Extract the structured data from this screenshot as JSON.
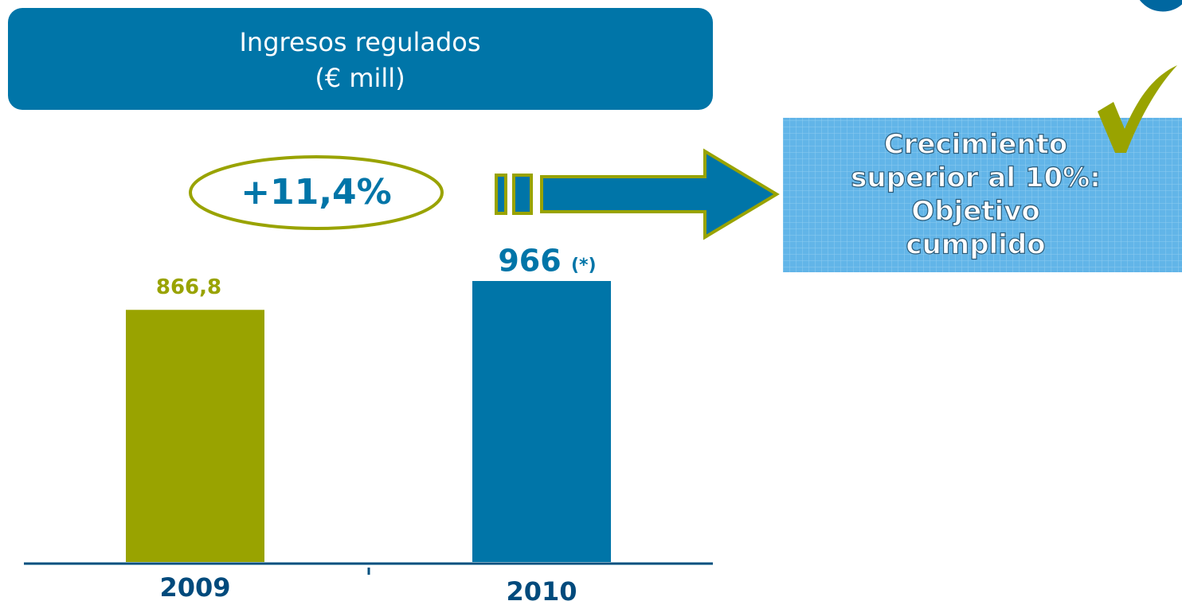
{
  "chart_data": {
    "type": "bar",
    "title": "Ingresos regulados",
    "subtitle": "(€ mill)",
    "categories": [
      "2009",
      "2010"
    ],
    "values": [
      866.8,
      966
    ],
    "value_labels": [
      "866,8",
      "966"
    ],
    "colors": [
      "#99a300",
      "#0075a8"
    ],
    "value_note": "(*)",
    "growth_label": "+11,4%",
    "callout": [
      "Crecimiento",
      "superior al 10%:",
      "Objetivo",
      "cumplido"
    ]
  }
}
